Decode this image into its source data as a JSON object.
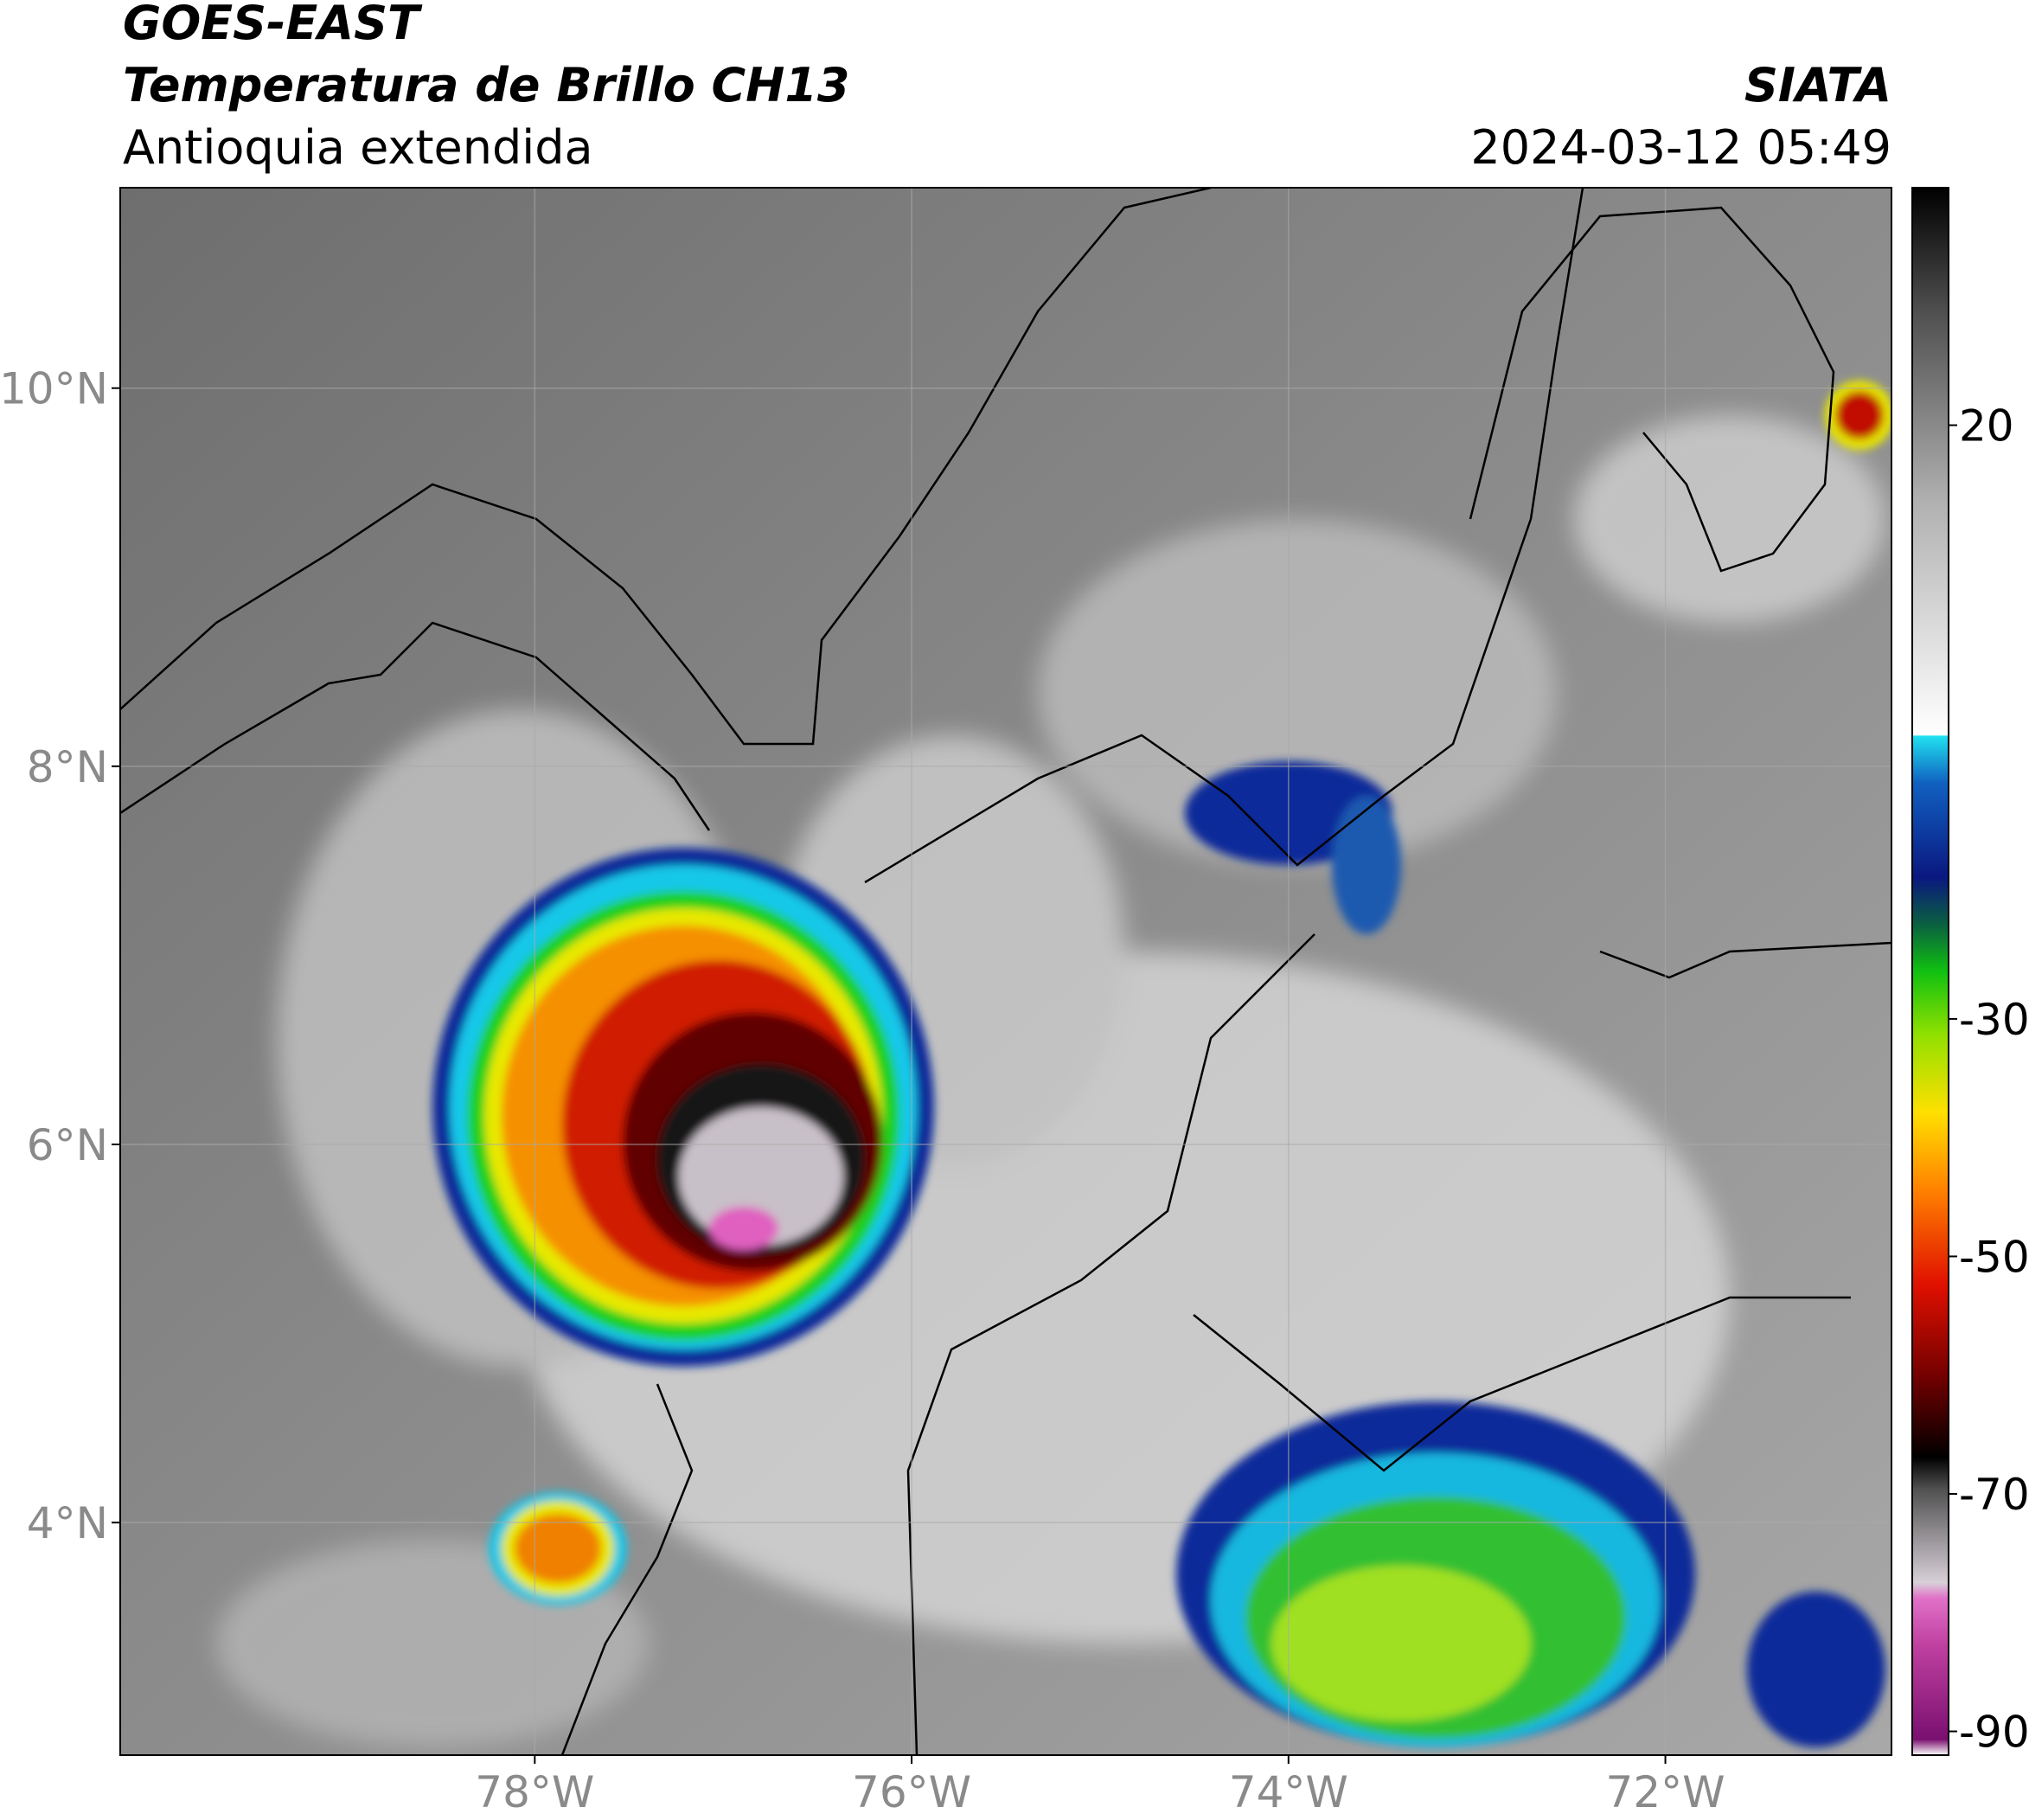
{
  "header": {
    "title": "GOES-EAST",
    "subtitle": "Temperatura de Brillo CH13",
    "region": "Antioquia extendida",
    "source": "SIATA",
    "timestamp": "2024-03-12 05:49"
  },
  "map": {
    "xlim": [
      -80.2,
      -70.8
    ],
    "ylim": [
      2.77,
      11.06
    ],
    "xticks": [
      {
        "value": -78,
        "label": "78°W"
      },
      {
        "value": -76,
        "label": "76°W"
      },
      {
        "value": -74,
        "label": "74°W"
      },
      {
        "value": -72,
        "label": "72°W"
      }
    ],
    "yticks": [
      {
        "value": 10,
        "label": "10°N"
      },
      {
        "value": 8,
        "label": "8°N"
      },
      {
        "value": 6,
        "label": "6°N"
      },
      {
        "value": 4,
        "label": "4°N"
      }
    ],
    "grid": true
  },
  "colorbar": {
    "clim": [
      -92,
      40
    ],
    "ticks": [
      20,
      -30,
      -50,
      -70,
      -90
    ]
  }
}
